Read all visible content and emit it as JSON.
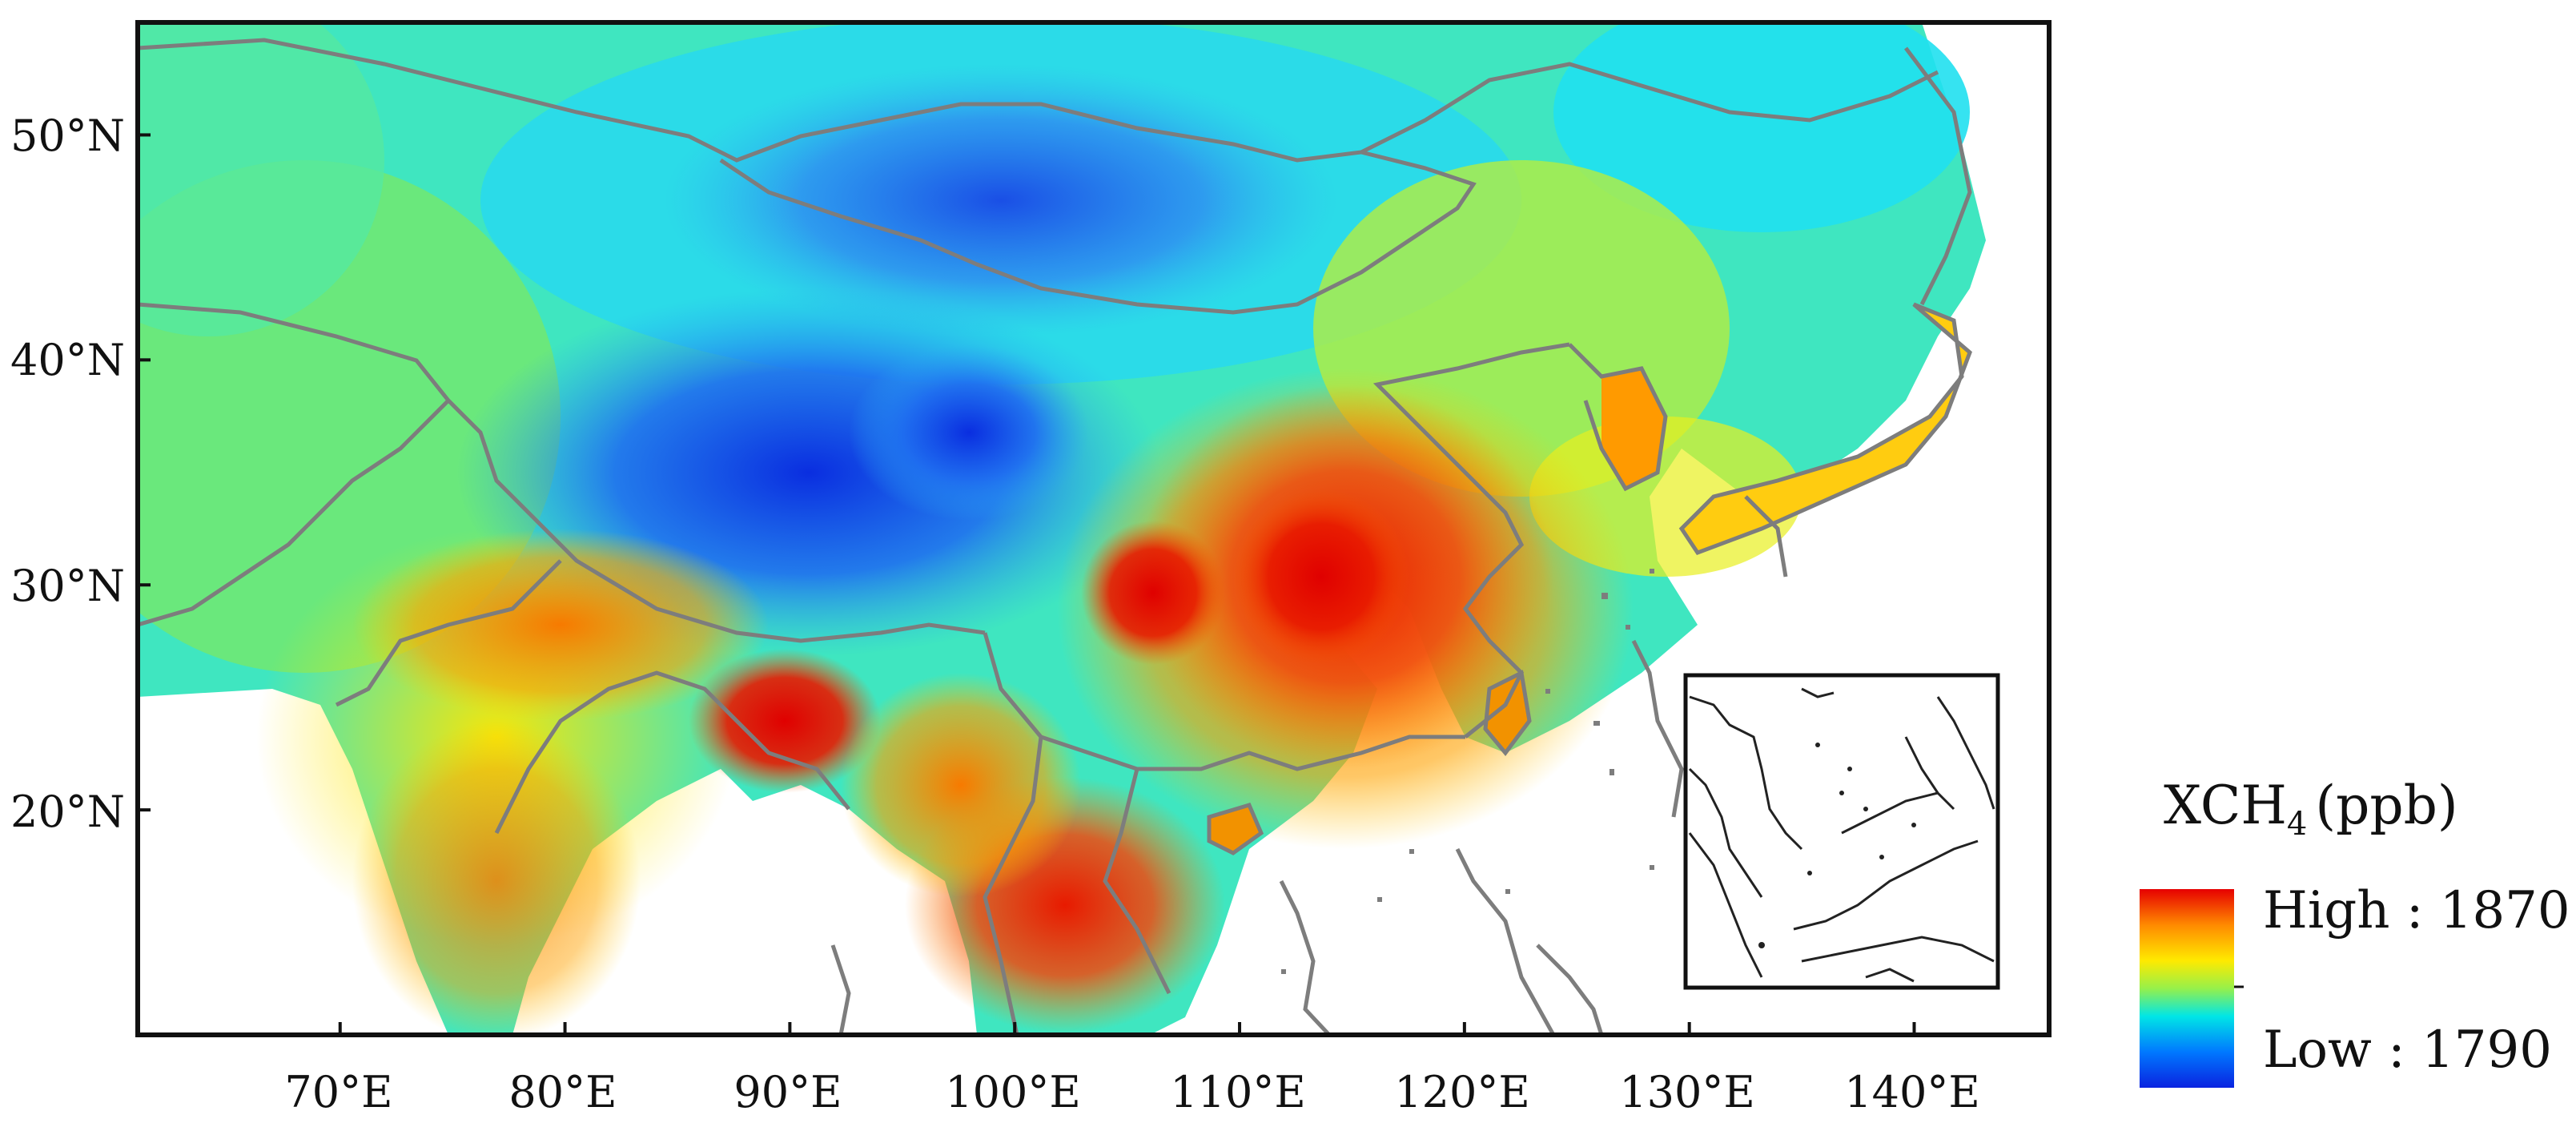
{
  "map": {
    "lat_labels": [
      "50°N",
      "40°N",
      "30°N",
      "20°N"
    ],
    "lon_labels": [
      "70°E",
      "80°E",
      "90°E",
      "100°E",
      "110°E",
      "120°E",
      "130°E",
      "140°E"
    ],
    "lat_values": [
      50,
      40,
      30,
      20
    ],
    "lon_values": [
      70,
      80,
      90,
      100,
      110,
      120,
      130,
      140
    ],
    "lon_range": [
      61,
      146
    ],
    "lat_range": [
      10,
      55
    ],
    "inset": "South China Sea inset map"
  },
  "legend": {
    "title_main": "XCH",
    "title_sub": "4",
    "title_unit": "(ppb)",
    "high_label": "High : 1870",
    "low_label": "Low : 1790",
    "high_value": 1870,
    "low_value": 1790,
    "colors": [
      "#e60000",
      "#ff8a00",
      "#ffea00",
      "#96f04a",
      "#00e6e6",
      "#0078ff",
      "#0a23e0"
    ]
  }
}
